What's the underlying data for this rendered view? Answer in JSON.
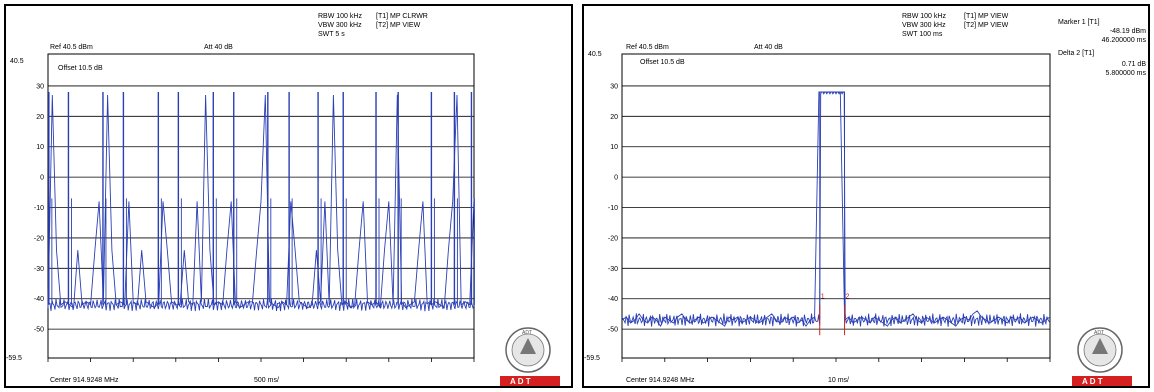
{
  "chart_data": [
    {
      "type": "line",
      "header": {
        "rbw": "RBW 100 kHz",
        "vbw": "VBW 300 kHz",
        "swt": "SWT 5 s",
        "trace1": "[T1] MP CLRWR",
        "trace2": "[T2] MP VIEW",
        "ref": "Ref 40.5 dBm",
        "att": "Att  40 dB",
        "offset": "Offset 10.5 dB"
      },
      "ylim": [
        -59.5,
        40.5
      ],
      "y_top_label": "40.5",
      "y_bottom_label": "-59.5",
      "yticks": [
        30,
        20,
        10,
        0,
        -10,
        -20,
        -30,
        -40,
        -50
      ],
      "footer": {
        "center": "Center 914.9248 MHz",
        "span": "500 ms/"
      },
      "series": [
        {
          "values": [
            -43,
            27,
            -24,
            -42,
            -41,
            -42,
            -43,
            -24,
            -42,
            -41,
            -42,
            -24,
            -8,
            -41,
            27,
            -24,
            -42,
            -41,
            -42,
            -8,
            -41,
            -42,
            -24,
            -41,
            -42,
            -43,
            -41,
            -8,
            -24,
            -41,
            -42,
            -42,
            -24,
            -41,
            -42,
            -8,
            -41,
            27,
            -24,
            -42,
            -41,
            -42,
            -24,
            -8,
            -41,
            -43,
            -42,
            -41,
            -41,
            -24,
            -8,
            27,
            -41,
            -42,
            -43,
            -41,
            -42,
            -8,
            -24,
            -41,
            -42,
            -43,
            -42,
            -24,
            -41,
            -8,
            -42,
            27,
            -24,
            -42,
            -41,
            -43,
            -42,
            -24,
            -8,
            -41,
            -42,
            -41,
            -43,
            -24,
            -8,
            -42,
            27,
            -41,
            -43,
            -42,
            -41,
            -24,
            -8,
            -41,
            -42,
            -41,
            -42,
            -43,
            -24,
            -8,
            27,
            -42,
            -41,
            -42,
            -7
          ]
        }
      ],
      "pulse_peaks_x": [
        2,
        48,
        129,
        177,
        259,
        306,
        388,
        436,
        516,
        566,
        634,
        693,
        770,
        822,
        900,
        954,
        994
      ],
      "logo": {
        "caption_top": "ADT",
        "adt_letters": "A   D   T"
      }
    },
    {
      "type": "line",
      "header": {
        "rbw": "RBW 100 kHz",
        "vbw": "VBW 300 kHz",
        "swt": "SWT 100 ms",
        "trace1": "[T1] MP VIEW",
        "trace2": "[T2] MP VIEW",
        "ref": "Ref 40.5 dBm",
        "att": "Att  40 dB",
        "offset": "Offset 10.5 dB"
      },
      "markers": {
        "marker1_label": "Marker 1 [T1]",
        "marker1_level": "-48.19 dBm",
        "marker1_time": "46.200000 ms",
        "delta2_label": "Delta 2 [T1]",
        "delta2_level": "0.71 dB",
        "delta2_time": "5.800000 ms",
        "m1": "1",
        "m2": "2"
      },
      "ylim": [
        -59.5,
        40.5
      ],
      "y_top_label": "40.5",
      "y_bottom_label": "-59.5",
      "yticks": [
        30,
        20,
        10,
        0,
        -10,
        -20,
        -30,
        -40,
        -50
      ],
      "footer": {
        "center": "Center 914.9248 MHz",
        "span": "10 ms/"
      },
      "pulse": {
        "start_ms": 46.2,
        "end_ms": 52.0,
        "level_dbm": 28,
        "noise_dbm": -47
      },
      "series": [
        {
          "values": [
            -47,
            -46,
            -48,
            -47,
            -45,
            -47,
            -48,
            -46,
            -47,
            -49,
            -46,
            -47,
            -48,
            -46,
            -45,
            -47,
            -48,
            -47,
            -46,
            -48,
            -47,
            -46,
            -47,
            -48,
            -49,
            -46,
            -47,
            -46,
            -48,
            -47,
            -46,
            -47,
            -48,
            -47,
            -46,
            -45,
            -47,
            -48,
            -46,
            -47,
            -46,
            -48,
            -47,
            -49,
            -47,
            -46,
            28,
            28,
            28,
            28,
            28,
            28,
            -47,
            -46,
            -48,
            -47,
            -46,
            -47,
            -48,
            -46,
            -47,
            -48,
            -49,
            -47,
            -46,
            -48,
            -47,
            -46,
            -45,
            -47,
            -48,
            -46,
            -47,
            -48,
            -47,
            -46,
            -47,
            -48,
            -49,
            -47,
            -46,
            -47,
            -45,
            -44,
            -46,
            -47,
            -48,
            -47,
            -46,
            -47,
            -48,
            -46,
            -47,
            -46,
            -48,
            -47,
            -46,
            -47,
            -48,
            -47,
            -46
          ]
        }
      ],
      "logo": {
        "caption_top": "ADT",
        "adt_letters": "A   D   T"
      }
    }
  ],
  "colors": {
    "trace": "#2b3fb5",
    "adt_bar": "#d42020",
    "marker": "#cc2222"
  }
}
